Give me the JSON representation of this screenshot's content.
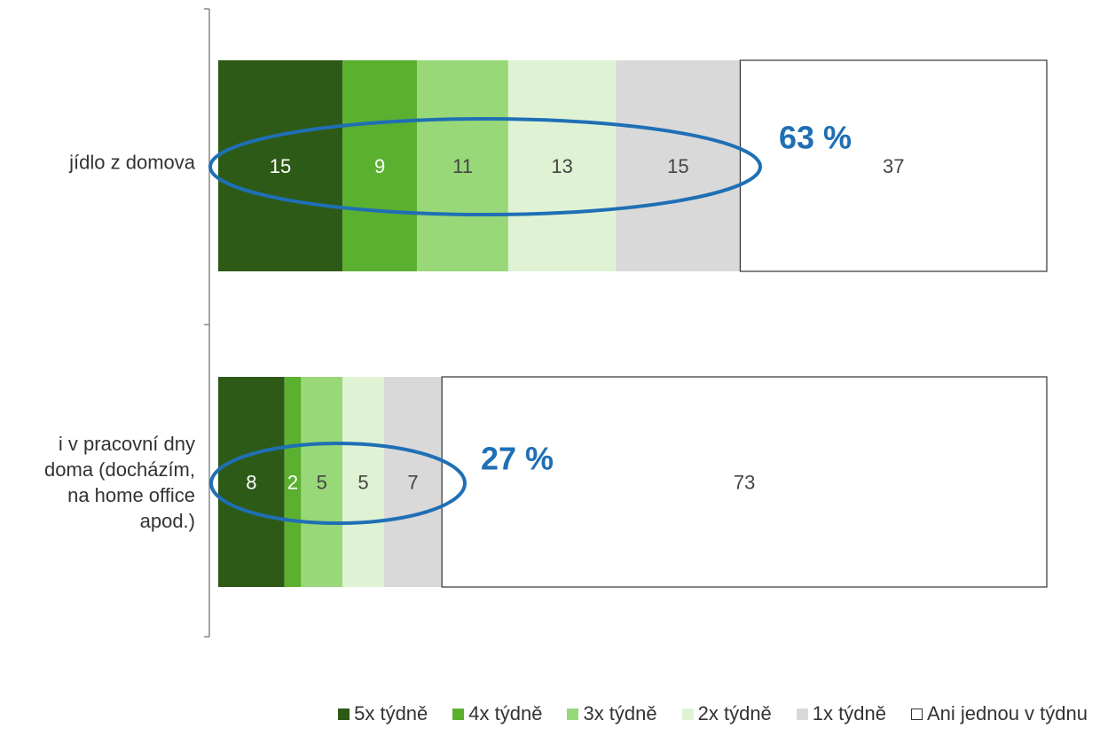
{
  "chart_data": {
    "type": "stacked-barh",
    "categories": [
      "jídlo z domova",
      "i v pracovní dny doma (docházím, na home office apod.)"
    ],
    "series": [
      {
        "name": "5x týdně",
        "color": "#2d5a17",
        "values": [
          15,
          8
        ]
      },
      {
        "name": "4x týdně",
        "color": "#5bb030",
        "values": [
          9,
          2
        ]
      },
      {
        "name": "3x týdně",
        "color": "#98d878",
        "values": [
          11,
          5
        ]
      },
      {
        "name": "2x týdně",
        "color": "#dff3d4",
        "values": [
          13,
          5
        ]
      },
      {
        "name": "1x týdně",
        "color": "#d9d9d9",
        "values": [
          15,
          7
        ]
      },
      {
        "name": "Ani jednou v týdnu",
        "color": "#ffffff",
        "values": [
          37,
          73
        ]
      }
    ],
    "xlim": [
      0,
      100
    ],
    "annotations": [
      {
        "text": "63 %"
      },
      {
        "text": "27 %"
      }
    ],
    "legend": "bottom"
  }
}
